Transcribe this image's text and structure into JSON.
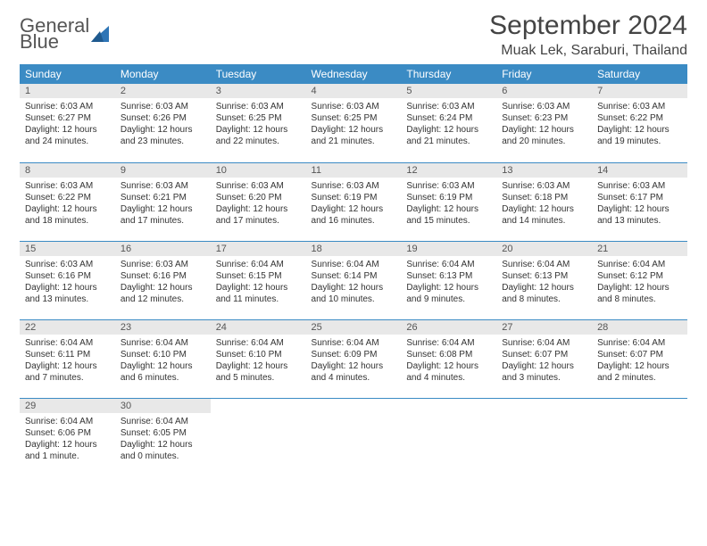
{
  "logo": {
    "line1": "General",
    "line2": "Blue"
  },
  "title": "September 2024",
  "location": "Muak Lek, Saraburi, Thailand",
  "colors": {
    "header_bg": "#3b8bc4",
    "header_text": "#ffffff",
    "daynum_bg": "#e8e8e8",
    "rule": "#3b8bc4",
    "logo_blue": "#2e75b6",
    "text": "#333333"
  },
  "typography": {
    "title_fontsize": 30,
    "location_fontsize": 16,
    "header_fontsize": 12,
    "daynum_fontsize": 11,
    "body_fontsize": 10
  },
  "weekdays": [
    "Sunday",
    "Monday",
    "Tuesday",
    "Wednesday",
    "Thursday",
    "Friday",
    "Saturday"
  ],
  "weeks": [
    [
      {
        "n": "1",
        "sr": "Sunrise: 6:03 AM",
        "ss": "Sunset: 6:27 PM",
        "d1": "Daylight: 12 hours",
        "d2": "and 24 minutes."
      },
      {
        "n": "2",
        "sr": "Sunrise: 6:03 AM",
        "ss": "Sunset: 6:26 PM",
        "d1": "Daylight: 12 hours",
        "d2": "and 23 minutes."
      },
      {
        "n": "3",
        "sr": "Sunrise: 6:03 AM",
        "ss": "Sunset: 6:25 PM",
        "d1": "Daylight: 12 hours",
        "d2": "and 22 minutes."
      },
      {
        "n": "4",
        "sr": "Sunrise: 6:03 AM",
        "ss": "Sunset: 6:25 PM",
        "d1": "Daylight: 12 hours",
        "d2": "and 21 minutes."
      },
      {
        "n": "5",
        "sr": "Sunrise: 6:03 AM",
        "ss": "Sunset: 6:24 PM",
        "d1": "Daylight: 12 hours",
        "d2": "and 21 minutes."
      },
      {
        "n": "6",
        "sr": "Sunrise: 6:03 AM",
        "ss": "Sunset: 6:23 PM",
        "d1": "Daylight: 12 hours",
        "d2": "and 20 minutes."
      },
      {
        "n": "7",
        "sr": "Sunrise: 6:03 AM",
        "ss": "Sunset: 6:22 PM",
        "d1": "Daylight: 12 hours",
        "d2": "and 19 minutes."
      }
    ],
    [
      {
        "n": "8",
        "sr": "Sunrise: 6:03 AM",
        "ss": "Sunset: 6:22 PM",
        "d1": "Daylight: 12 hours",
        "d2": "and 18 minutes."
      },
      {
        "n": "9",
        "sr": "Sunrise: 6:03 AM",
        "ss": "Sunset: 6:21 PM",
        "d1": "Daylight: 12 hours",
        "d2": "and 17 minutes."
      },
      {
        "n": "10",
        "sr": "Sunrise: 6:03 AM",
        "ss": "Sunset: 6:20 PM",
        "d1": "Daylight: 12 hours",
        "d2": "and 17 minutes."
      },
      {
        "n": "11",
        "sr": "Sunrise: 6:03 AM",
        "ss": "Sunset: 6:19 PM",
        "d1": "Daylight: 12 hours",
        "d2": "and 16 minutes."
      },
      {
        "n": "12",
        "sr": "Sunrise: 6:03 AM",
        "ss": "Sunset: 6:19 PM",
        "d1": "Daylight: 12 hours",
        "d2": "and 15 minutes."
      },
      {
        "n": "13",
        "sr": "Sunrise: 6:03 AM",
        "ss": "Sunset: 6:18 PM",
        "d1": "Daylight: 12 hours",
        "d2": "and 14 minutes."
      },
      {
        "n": "14",
        "sr": "Sunrise: 6:03 AM",
        "ss": "Sunset: 6:17 PM",
        "d1": "Daylight: 12 hours",
        "d2": "and 13 minutes."
      }
    ],
    [
      {
        "n": "15",
        "sr": "Sunrise: 6:03 AM",
        "ss": "Sunset: 6:16 PM",
        "d1": "Daylight: 12 hours",
        "d2": "and 13 minutes."
      },
      {
        "n": "16",
        "sr": "Sunrise: 6:03 AM",
        "ss": "Sunset: 6:16 PM",
        "d1": "Daylight: 12 hours",
        "d2": "and 12 minutes."
      },
      {
        "n": "17",
        "sr": "Sunrise: 6:04 AM",
        "ss": "Sunset: 6:15 PM",
        "d1": "Daylight: 12 hours",
        "d2": "and 11 minutes."
      },
      {
        "n": "18",
        "sr": "Sunrise: 6:04 AM",
        "ss": "Sunset: 6:14 PM",
        "d1": "Daylight: 12 hours",
        "d2": "and 10 minutes."
      },
      {
        "n": "19",
        "sr": "Sunrise: 6:04 AM",
        "ss": "Sunset: 6:13 PM",
        "d1": "Daylight: 12 hours",
        "d2": "and 9 minutes."
      },
      {
        "n": "20",
        "sr": "Sunrise: 6:04 AM",
        "ss": "Sunset: 6:13 PM",
        "d1": "Daylight: 12 hours",
        "d2": "and 8 minutes."
      },
      {
        "n": "21",
        "sr": "Sunrise: 6:04 AM",
        "ss": "Sunset: 6:12 PM",
        "d1": "Daylight: 12 hours",
        "d2": "and 8 minutes."
      }
    ],
    [
      {
        "n": "22",
        "sr": "Sunrise: 6:04 AM",
        "ss": "Sunset: 6:11 PM",
        "d1": "Daylight: 12 hours",
        "d2": "and 7 minutes."
      },
      {
        "n": "23",
        "sr": "Sunrise: 6:04 AM",
        "ss": "Sunset: 6:10 PM",
        "d1": "Daylight: 12 hours",
        "d2": "and 6 minutes."
      },
      {
        "n": "24",
        "sr": "Sunrise: 6:04 AM",
        "ss": "Sunset: 6:10 PM",
        "d1": "Daylight: 12 hours",
        "d2": "and 5 minutes."
      },
      {
        "n": "25",
        "sr": "Sunrise: 6:04 AM",
        "ss": "Sunset: 6:09 PM",
        "d1": "Daylight: 12 hours",
        "d2": "and 4 minutes."
      },
      {
        "n": "26",
        "sr": "Sunrise: 6:04 AM",
        "ss": "Sunset: 6:08 PM",
        "d1": "Daylight: 12 hours",
        "d2": "and 4 minutes."
      },
      {
        "n": "27",
        "sr": "Sunrise: 6:04 AM",
        "ss": "Sunset: 6:07 PM",
        "d1": "Daylight: 12 hours",
        "d2": "and 3 minutes."
      },
      {
        "n": "28",
        "sr": "Sunrise: 6:04 AM",
        "ss": "Sunset: 6:07 PM",
        "d1": "Daylight: 12 hours",
        "d2": "and 2 minutes."
      }
    ],
    [
      {
        "n": "29",
        "sr": "Sunrise: 6:04 AM",
        "ss": "Sunset: 6:06 PM",
        "d1": "Daylight: 12 hours",
        "d2": "and 1 minute."
      },
      {
        "n": "30",
        "sr": "Sunrise: 6:04 AM",
        "ss": "Sunset: 6:05 PM",
        "d1": "Daylight: 12 hours",
        "d2": "and 0 minutes."
      },
      null,
      null,
      null,
      null,
      null
    ]
  ]
}
